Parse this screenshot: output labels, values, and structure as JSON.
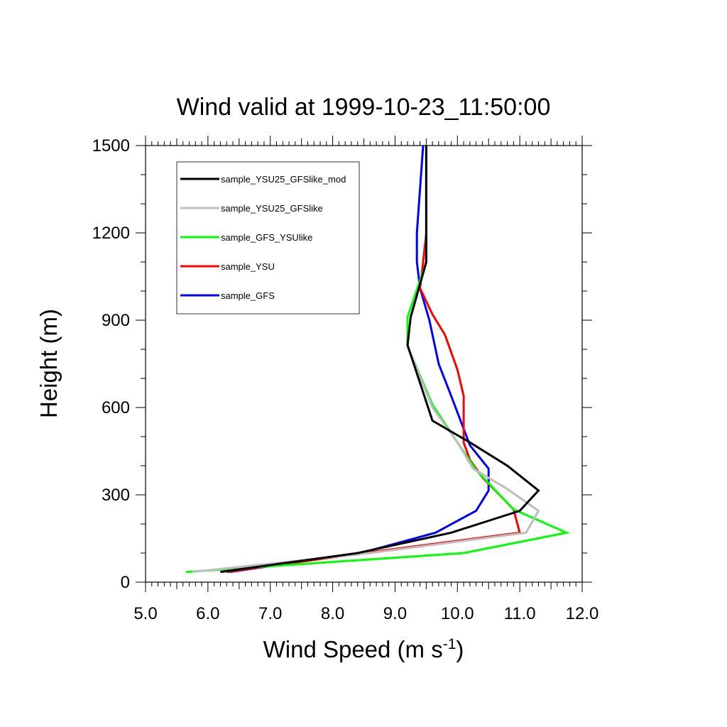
{
  "chart_data": {
    "type": "line",
    "title": "Wind valid at 1999-10-23_11:50:00",
    "xlabel_main": "Wind Speed (m s",
    "xlabel_sup": "-1",
    "xlabel_close": ")",
    "ylabel": "Height (m)",
    "xlim": [
      5.0,
      12.0
    ],
    "ylim": [
      0,
      1500
    ],
    "x_ticks": [
      "5.0",
      "6.0",
      "7.0",
      "8.0",
      "9.0",
      "10.0",
      "11.0",
      "12.0"
    ],
    "y_ticks": [
      "0",
      "300",
      "600",
      "900",
      "1200",
      "1500"
    ],
    "legend_position": "top-left",
    "series": [
      {
        "name": "sample_YSU25_GFSlike_mod",
        "color": "#000000",
        "points": [
          [
            6.2,
            35
          ],
          [
            8.4,
            100
          ],
          [
            9.9,
            170
          ],
          [
            11.0,
            245
          ],
          [
            11.3,
            315
          ],
          [
            10.8,
            400
          ],
          [
            10.2,
            480
          ],
          [
            9.6,
            555
          ],
          [
            9.2,
            815
          ],
          [
            9.25,
            910
          ],
          [
            9.5,
            1100
          ],
          [
            9.5,
            1200
          ],
          [
            9.5,
            1500
          ]
        ]
      },
      {
        "name": "sample_YSU25_GFSlike",
        "color": "#bebebe",
        "points": [
          [
            5.75,
            35
          ],
          [
            8.6,
            100
          ],
          [
            11.1,
            170
          ],
          [
            11.3,
            245
          ],
          [
            10.8,
            320
          ],
          [
            10.25,
            390
          ],
          [
            10.0,
            480
          ],
          [
            9.6,
            600
          ],
          [
            9.2,
            810
          ],
          [
            9.25,
            910
          ],
          [
            9.5,
            1100
          ],
          [
            9.5,
            1200
          ],
          [
            9.5,
            1500
          ]
        ]
      },
      {
        "name": "sample_GFS_YSUlike",
        "color": "#00ff00",
        "points": [
          [
            5.65,
            35
          ],
          [
            10.1,
            100
          ],
          [
            11.75,
            170
          ],
          [
            10.9,
            250
          ],
          [
            10.3,
            385
          ],
          [
            10.0,
            480
          ],
          [
            9.6,
            610
          ],
          [
            9.2,
            810
          ],
          [
            9.2,
            910
          ],
          [
            9.5,
            1100
          ],
          [
            9.5,
            1200
          ],
          [
            9.5,
            1500
          ]
        ]
      },
      {
        "name": "sample_YSU",
        "color": "#ff0000",
        "points": [
          [
            6.3,
            35
          ],
          [
            8.5,
            100
          ],
          [
            11.0,
            170
          ],
          [
            10.9,
            250
          ],
          [
            10.4,
            360
          ],
          [
            10.2,
            420
          ],
          [
            10.1,
            480
          ],
          [
            10.1,
            640
          ],
          [
            10.0,
            730
          ],
          [
            9.8,
            850
          ],
          [
            9.6,
            920
          ],
          [
            9.4,
            1010
          ],
          [
            9.45,
            1100
          ],
          [
            9.5,
            1200
          ],
          [
            9.5,
            1500
          ]
        ]
      },
      {
        "name": "sample_GFS",
        "color": "#0000ff",
        "points": [
          [
            6.35,
            35
          ],
          [
            8.45,
            100
          ],
          [
            9.65,
            170
          ],
          [
            10.3,
            245
          ],
          [
            10.5,
            315
          ],
          [
            10.5,
            390
          ],
          [
            10.2,
            470
          ],
          [
            9.9,
            640
          ],
          [
            9.7,
            750
          ],
          [
            9.55,
            900
          ],
          [
            9.4,
            1010
          ],
          [
            9.35,
            1100
          ],
          [
            9.35,
            1200
          ],
          [
            9.45,
            1500
          ]
        ]
      }
    ]
  }
}
